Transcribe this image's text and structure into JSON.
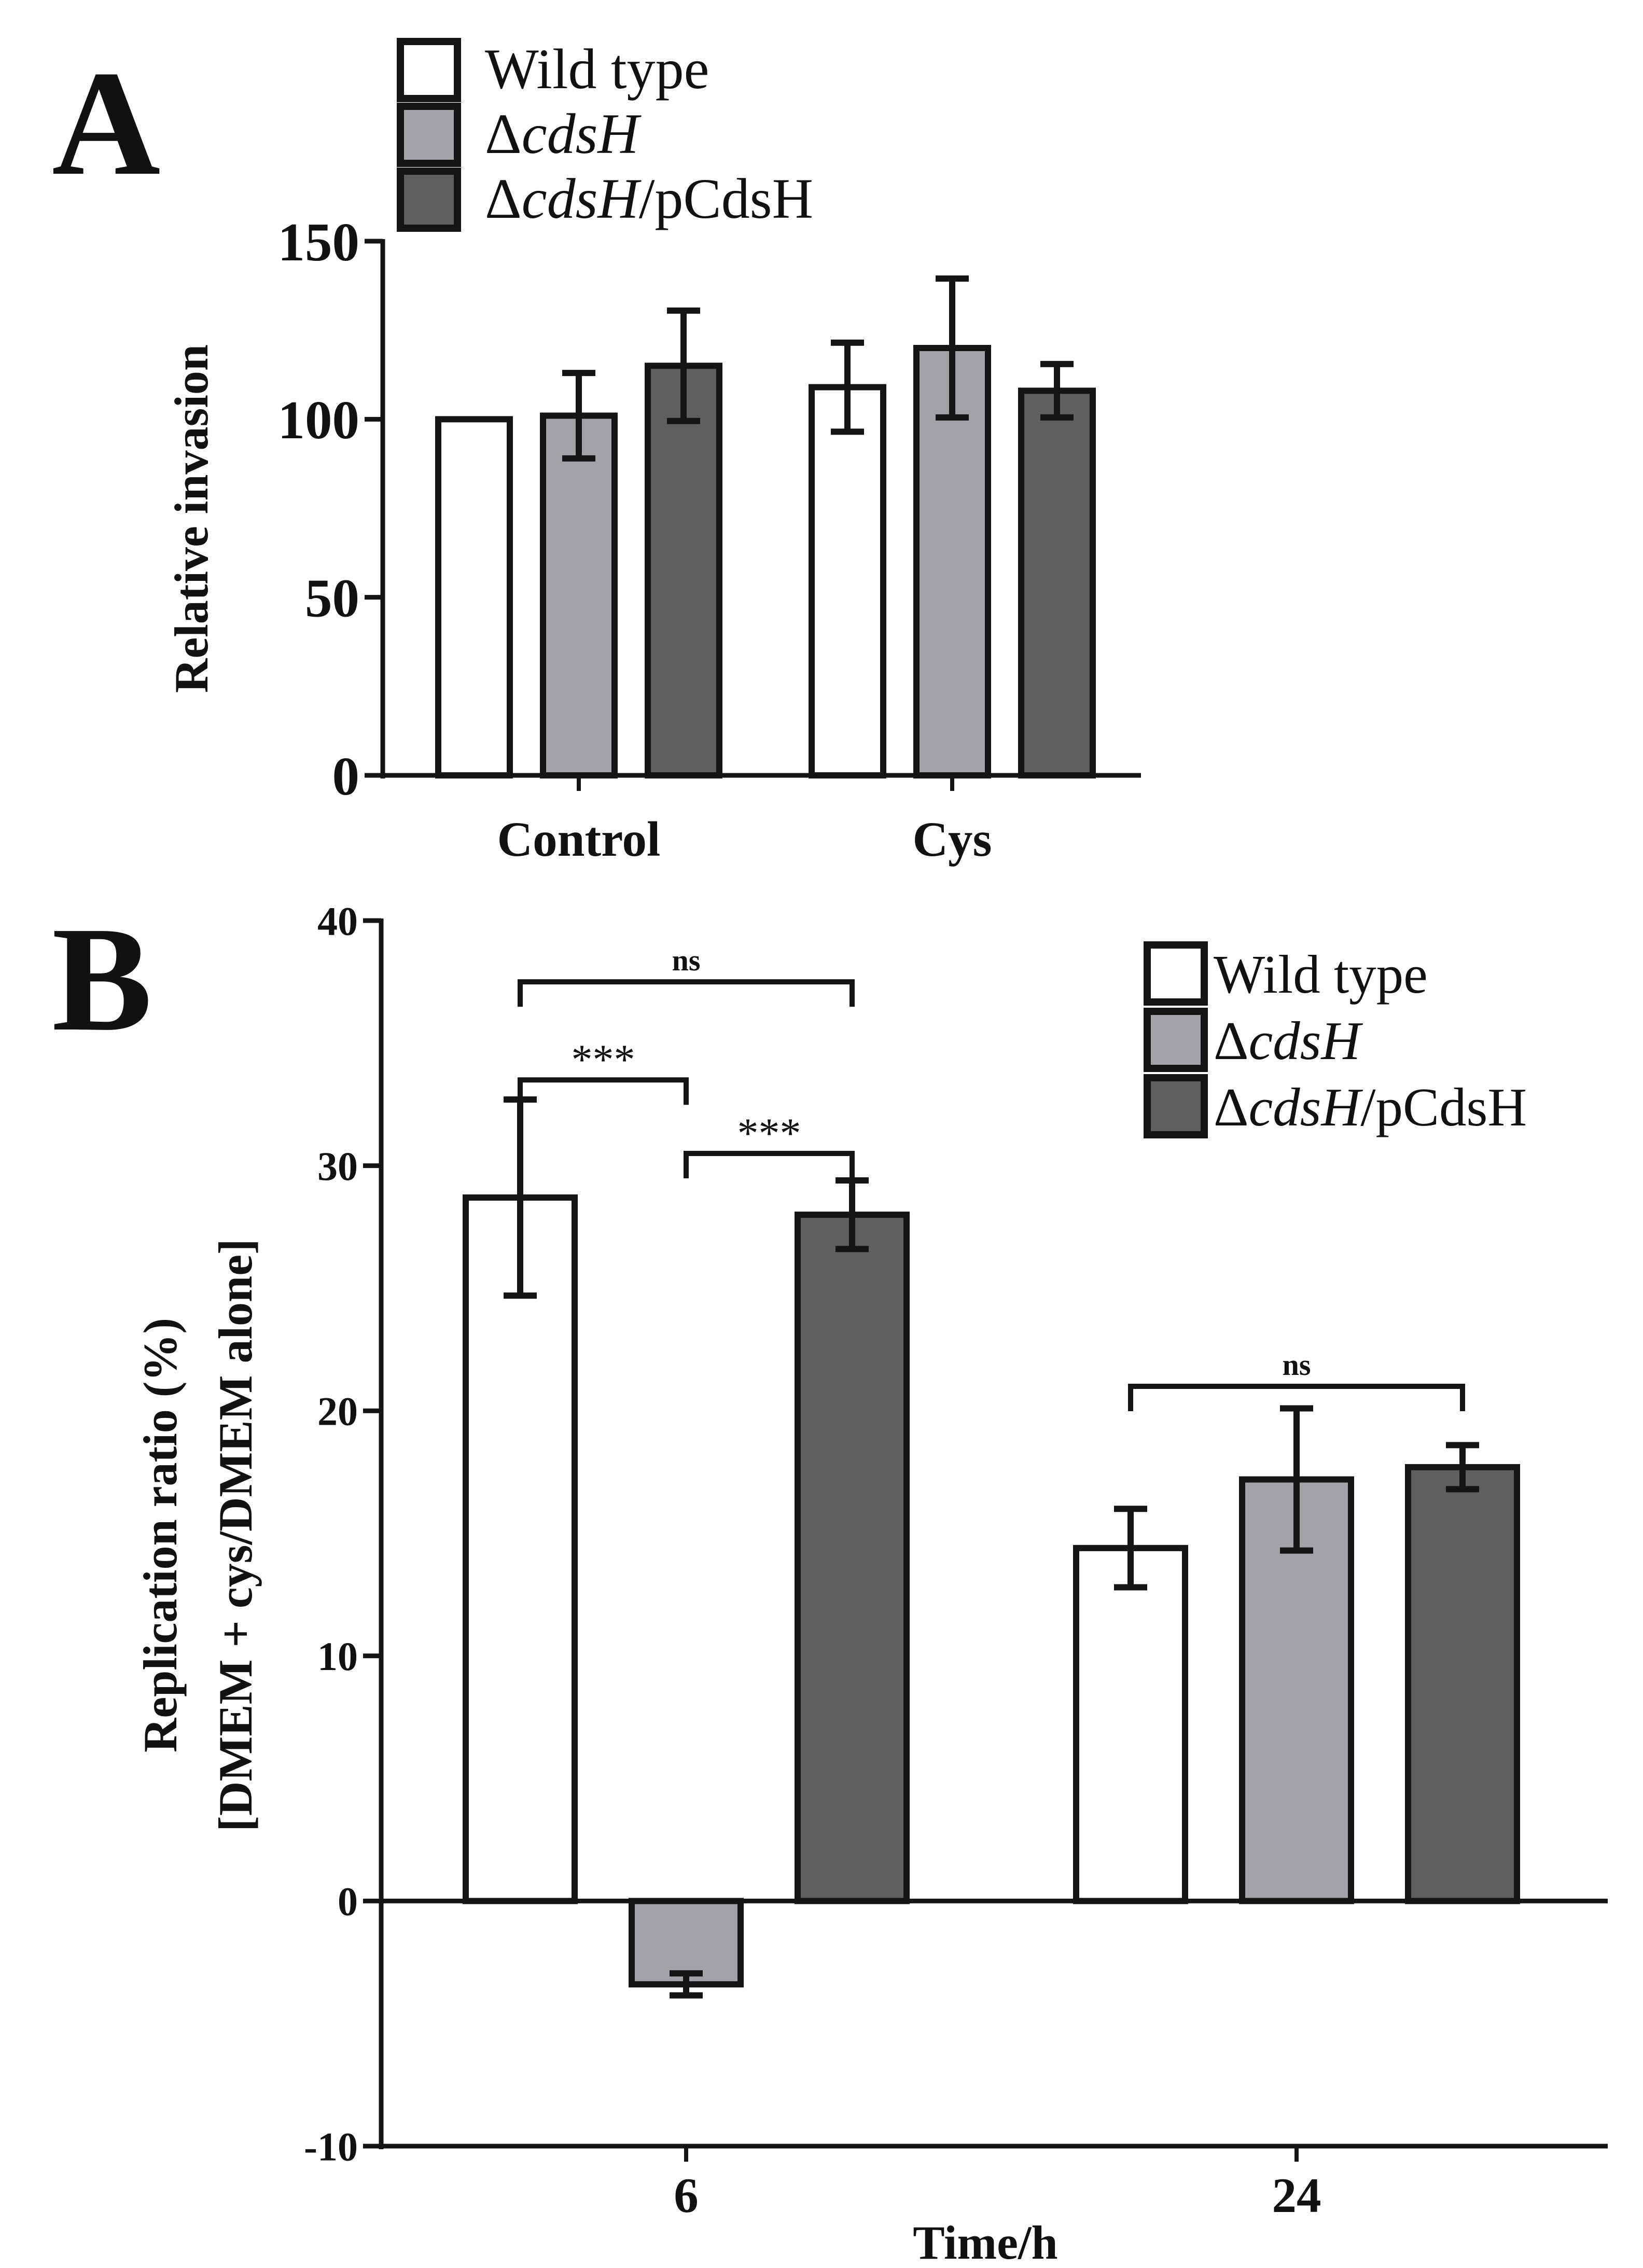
{
  "colors": {
    "wild_type": "#ffffff",
    "mutant": "#a3a3a7",
    "complement": "#5f5f5f",
    "stroke": "#141414"
  },
  "chart_data": [
    {
      "panel": "A",
      "type": "bar",
      "title": "",
      "xlabel": "",
      "ylabel": "Relative invasion",
      "ylim": [
        0,
        150
      ],
      "yticks": [
        0,
        50,
        100,
        150
      ],
      "categories": [
        "Control",
        "Cys"
      ],
      "legend": {
        "position": "top",
        "entries": [
          {
            "prefix": "",
            "italic": "",
            "suffix": "Wild type"
          },
          {
            "prefix": "Δ",
            "italic": "cdsH",
            "suffix": ""
          },
          {
            "prefix": "Δ",
            "italic": "cdsH",
            "suffix": "/pCdsH"
          }
        ]
      },
      "series": [
        {
          "name": "Wild type",
          "values": [
            100,
            109
          ],
          "errors": [
            0,
            12.5
          ]
        },
        {
          "name": "ΔcdsH",
          "values": [
            101,
            120
          ],
          "errors": [
            12,
            19.5
          ]
        },
        {
          "name": "ΔcdsH/pCdsH",
          "values": [
            115,
            108
          ],
          "errors": [
            15.5,
            7.5
          ]
        }
      ],
      "annotations": []
    },
    {
      "panel": "B",
      "type": "bar",
      "title": "",
      "xlabel": "Time/h",
      "ylabel_line1": "Replication ratio (%)",
      "ylabel_line2": "[DMEM + cys/DMEM alone]",
      "ylim": [
        -10,
        40
      ],
      "yticks": [
        -10,
        0,
        10,
        20,
        30,
        40
      ],
      "categories": [
        "6",
        "24"
      ],
      "legend": {
        "position": "top-right",
        "entries": [
          {
            "prefix": "",
            "italic": "",
            "suffix": "Wild type"
          },
          {
            "prefix": "Δ",
            "italic": "cdsH",
            "suffix": ""
          },
          {
            "prefix": "Δ",
            "italic": "cdsH",
            "suffix": "/pCdsH"
          }
        ]
      },
      "series": [
        {
          "name": "Wild type",
          "values": [
            28.7,
            14.4
          ],
          "errors": [
            4.0,
            1.6
          ]
        },
        {
          "name": "ΔcdsH",
          "values": [
            -3.4,
            17.2
          ],
          "errors": [
            0.45,
            2.9
          ]
        },
        {
          "name": "ΔcdsH/pCdsH",
          "values": [
            28.0,
            17.7
          ],
          "errors": [
            1.4,
            0.9
          ]
        }
      ],
      "annotations": [
        {
          "text": "***",
          "from": [
            0,
            0
          ],
          "to": [
            0,
            1
          ],
          "y": 33.5
        },
        {
          "text": "***",
          "from": [
            0,
            1
          ],
          "to": [
            0,
            2
          ],
          "y": 30.5
        },
        {
          "text": "ns",
          "from": [
            0,
            0
          ],
          "to": [
            0,
            2
          ],
          "y": 37.5
        },
        {
          "text": "ns",
          "from": [
            1,
            0
          ],
          "to": [
            1,
            2
          ],
          "y": 21.0
        }
      ]
    }
  ],
  "panels": {
    "A": {
      "label": "A"
    },
    "B": {
      "label": "B"
    }
  }
}
